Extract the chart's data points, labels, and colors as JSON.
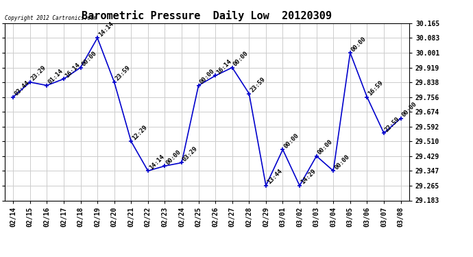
{
  "title": "Barometric Pressure  Daily Low  20120309",
  "copyright": "Copyright 2012 Cartronics.com",
  "x_labels": [
    "02/14",
    "02/15",
    "02/16",
    "02/17",
    "02/18",
    "02/19",
    "02/20",
    "02/21",
    "02/22",
    "02/23",
    "02/24",
    "02/25",
    "02/26",
    "02/27",
    "02/28",
    "02/29",
    "03/01",
    "03/02",
    "03/03",
    "03/04",
    "03/05",
    "03/06",
    "03/07",
    "03/08"
  ],
  "y_values": [
    29.756,
    29.838,
    29.82,
    29.856,
    29.919,
    30.083,
    29.838,
    29.51,
    29.347,
    29.374,
    29.392,
    29.82,
    29.874,
    29.919,
    29.775,
    29.265,
    29.465,
    29.265,
    29.429,
    29.347,
    30.001,
    29.756,
    29.556,
    29.638
  ],
  "point_labels": [
    "03:44",
    "23:29",
    "01:14",
    "16:14",
    "00:00",
    "14:14",
    "23:59",
    "12:29",
    "14:14",
    "00:00",
    "03:29",
    "00:00",
    "16:14",
    "00:00",
    "23:59",
    "13:44",
    "00:00",
    "14:29",
    "00:00",
    "00:00",
    "00:00",
    "16:59",
    "22:59",
    "00:00"
  ],
  "ylim_min": 29.183,
  "ylim_max": 30.165,
  "yticks": [
    29.183,
    29.265,
    29.347,
    29.429,
    29.51,
    29.592,
    29.674,
    29.756,
    29.838,
    29.919,
    30.001,
    30.083,
    30.165
  ],
  "line_color": "#0000cc",
  "grid_color": "#cccccc",
  "bg_color": "#ffffff",
  "title_fontsize": 11,
  "tick_fontsize": 7,
  "point_label_fontsize": 6.5
}
